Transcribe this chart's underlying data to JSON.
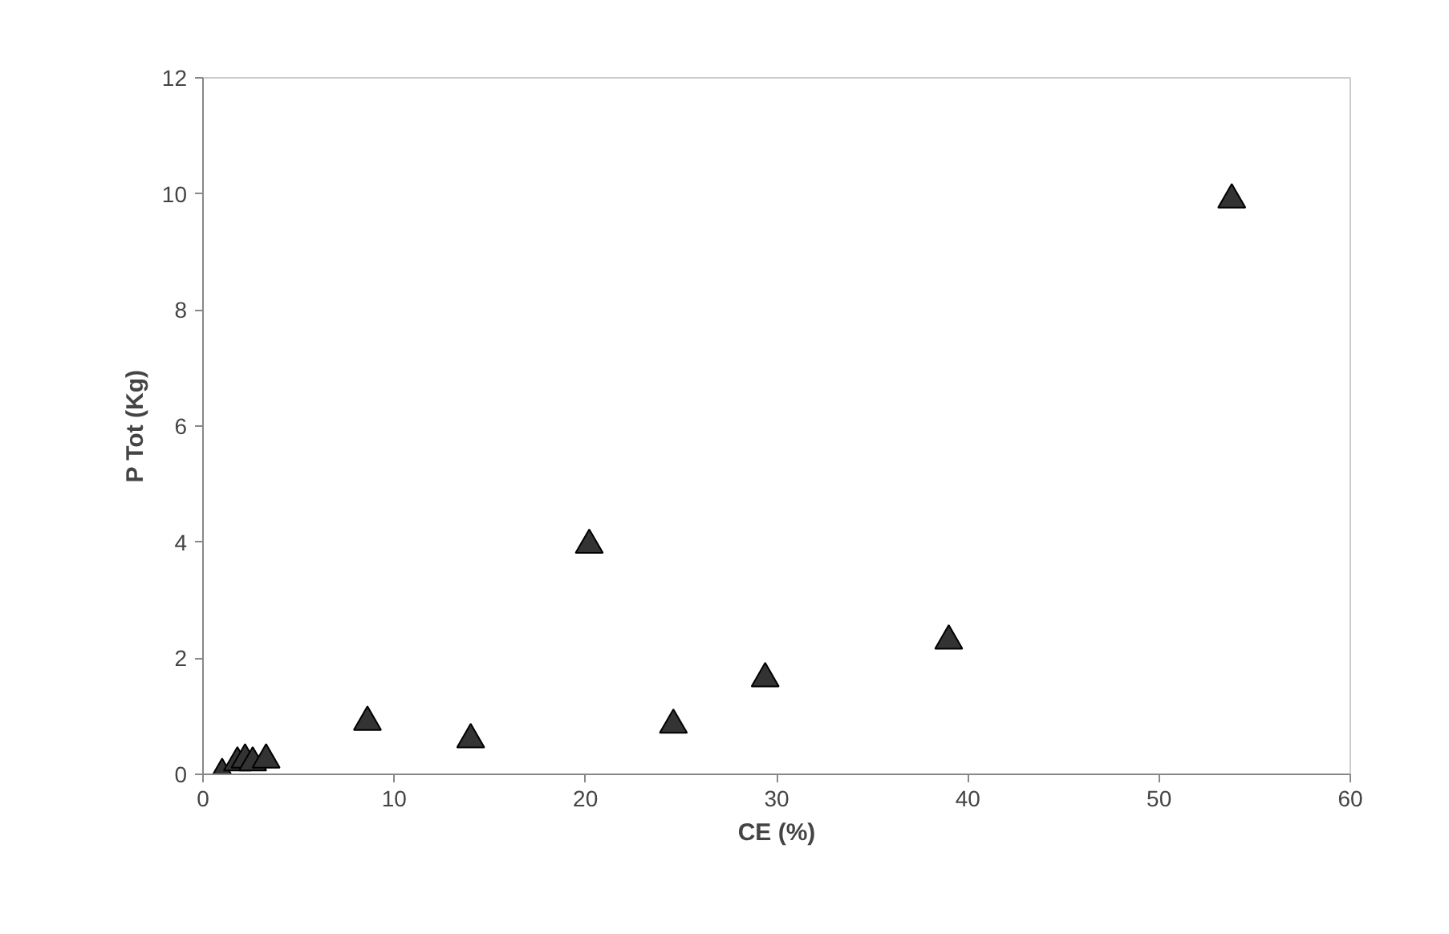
{
  "chart_data": {
    "type": "scatter",
    "xlabel": "CE (%)",
    "ylabel": "P Tot (Kg)",
    "x": [
      1.0,
      1.8,
      2.2,
      2.6,
      3.3,
      8.6,
      14.0,
      20.2,
      24.6,
      29.4,
      39.0,
      53.8
    ],
    "series": [
      {
        "color": "#333333",
        "values": [
          0.0,
          0.2,
          0.25,
          0.2,
          0.25,
          0.9,
          0.6,
          3.95,
          0.85,
          1.65,
          2.3,
          9.9
        ]
      }
    ],
    "xlim": [
      0,
      60
    ],
    "ylim": [
      0,
      12
    ],
    "xticks": [
      0,
      10,
      20,
      30,
      40,
      50,
      60
    ],
    "yticks": [
      0,
      2,
      4,
      6,
      8,
      10,
      12
    ],
    "marker": "triangle",
    "grid": false
  }
}
